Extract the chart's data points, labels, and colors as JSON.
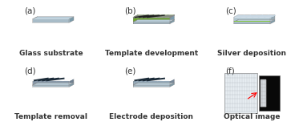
{
  "title": "",
  "background_color": "#ffffff",
  "panels": [
    {
      "label": "(a)",
      "caption": "Glass substrate",
      "col": 0,
      "row": 0
    },
    {
      "label": "(b)",
      "caption": "Template development",
      "col": 1,
      "row": 0
    },
    {
      "label": "(c)",
      "caption": "Silver deposition",
      "col": 2,
      "row": 0
    },
    {
      "label": "(d)",
      "caption": "Template removal",
      "col": 0,
      "row": 1
    },
    {
      "label": "(e)",
      "caption": "Electrode deposition",
      "col": 1,
      "row": 1
    },
    {
      "label": "(f)",
      "caption": "Optical image",
      "col": 2,
      "row": 1
    }
  ],
  "glass_color": "#a8bcc8",
  "glass_edge_color": "#7a9aaa",
  "glass_top_color": "#b8ccd8",
  "green_color": "#7dc832",
  "caption_fontsize": 6.5,
  "label_fontsize": 7.5
}
